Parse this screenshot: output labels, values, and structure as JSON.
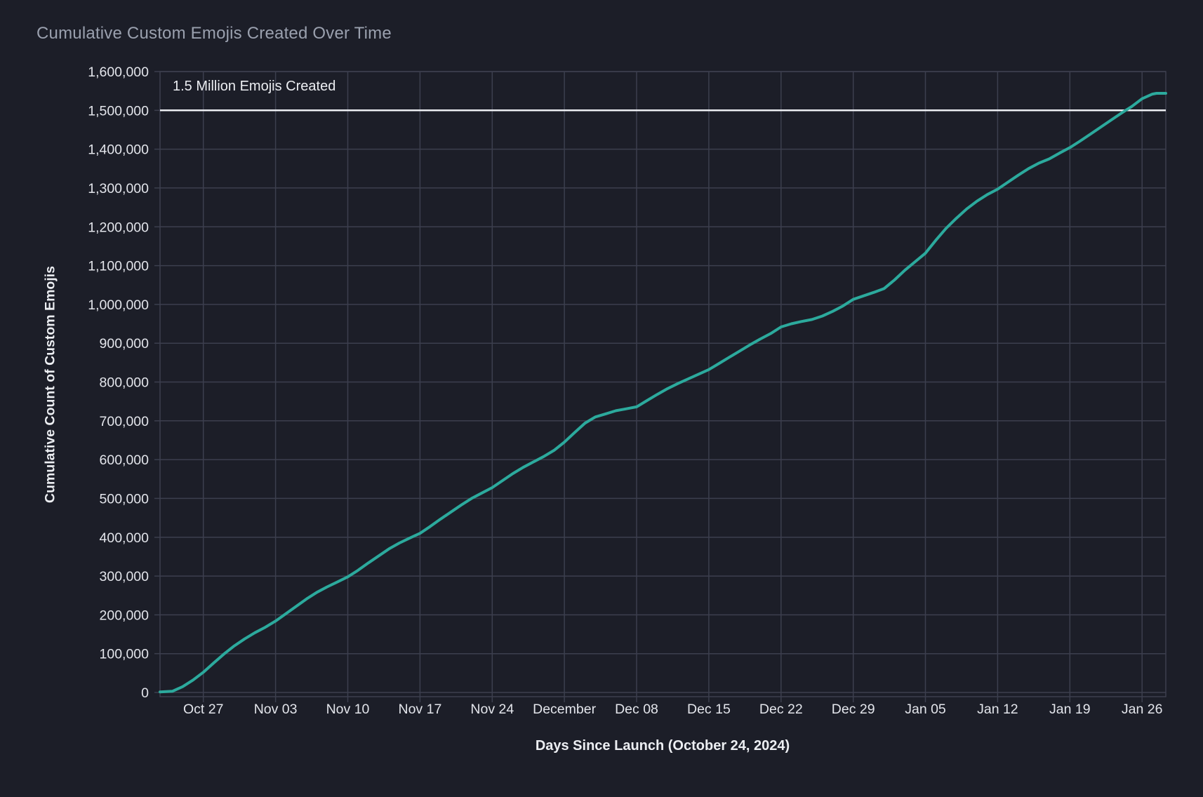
{
  "page": {
    "background": "#1c1e28"
  },
  "chart_data": {
    "type": "line",
    "title": "Cumulative Custom Emojis Created Over Time",
    "xlabel": "Days Since Launch (October 24, 2024)",
    "ylabel": "Cumulative Count of Custom Emojis",
    "annotation": "1.5 Million Emojis Created",
    "grid": true,
    "legend": "none",
    "x_domain_days": [
      -1.2,
      96.3
    ],
    "ylim": [
      0,
      1600000
    ],
    "colors": {
      "background": "#1c1e28",
      "grid": "#3c3f4e",
      "line": "#2caa9d",
      "reference": "#eceef2",
      "tick_text": "#e3e5eb",
      "axis_title_text": "#eceef2",
      "title_text": "#9aa0ae"
    },
    "reference_line": {
      "value": 1500000,
      "label": "1.5 Million Emojis Created"
    },
    "y_ticks": [
      0,
      100000,
      200000,
      300000,
      400000,
      500000,
      600000,
      700000,
      800000,
      900000,
      1000000,
      1100000,
      1200000,
      1300000,
      1400000,
      1500000,
      1600000
    ],
    "x_ticks": [
      {
        "day": 3,
        "label": "Oct 27"
      },
      {
        "day": 10,
        "label": "Nov 03"
      },
      {
        "day": 17,
        "label": "Nov 10"
      },
      {
        "day": 24,
        "label": "Nov 17"
      },
      {
        "day": 31,
        "label": "Nov 24"
      },
      {
        "day": 38,
        "label": "December"
      },
      {
        "day": 45,
        "label": "Dec 08"
      },
      {
        "day": 52,
        "label": "Dec 15"
      },
      {
        "day": 59,
        "label": "Dec 22"
      },
      {
        "day": 66,
        "label": "Dec 29"
      },
      {
        "day": 73,
        "label": "Jan 05"
      },
      {
        "day": 80,
        "label": "Jan 12"
      },
      {
        "day": 87,
        "label": "Jan 19"
      },
      {
        "day": 94,
        "label": "Jan 26"
      }
    ],
    "series": [
      {
        "name": "Cumulative Custom Emojis",
        "color": "#2caa9d",
        "points": [
          [
            -1.2,
            1500
          ],
          [
            0,
            3000
          ],
          [
            1,
            15000
          ],
          [
            2,
            32000
          ],
          [
            3,
            52000
          ],
          [
            4,
            76000
          ],
          [
            5,
            99000
          ],
          [
            6,
            120000
          ],
          [
            7,
            138000
          ],
          [
            8,
            154000
          ],
          [
            9,
            168000
          ],
          [
            10,
            184000
          ],
          [
            11,
            203000
          ],
          [
            12,
            222000
          ],
          [
            13,
            241000
          ],
          [
            14,
            258000
          ],
          [
            15,
            272000
          ],
          [
            16,
            285000
          ],
          [
            17,
            298000
          ],
          [
            18,
            315000
          ],
          [
            19,
            334000
          ],
          [
            20,
            352000
          ],
          [
            21,
            370000
          ],
          [
            22,
            385000
          ],
          [
            23,
            398000
          ],
          [
            24,
            410000
          ],
          [
            25,
            428000
          ],
          [
            26,
            447000
          ],
          [
            27,
            465000
          ],
          [
            28,
            483000
          ],
          [
            29,
            500000
          ],
          [
            30,
            514000
          ],
          [
            31,
            528000
          ],
          [
            32,
            546000
          ],
          [
            33,
            564000
          ],
          [
            34,
            580000
          ],
          [
            35,
            594000
          ],
          [
            36,
            608000
          ],
          [
            37,
            624000
          ],
          [
            38,
            645000
          ],
          [
            39,
            670000
          ],
          [
            40,
            694000
          ],
          [
            41,
            710000
          ],
          [
            42,
            718000
          ],
          [
            43,
            726000
          ],
          [
            44,
            731000
          ],
          [
            45,
            736000
          ],
          [
            46,
            752000
          ],
          [
            47,
            768000
          ],
          [
            48,
            783000
          ],
          [
            49,
            796000
          ],
          [
            50,
            808000
          ],
          [
            51,
            820000
          ],
          [
            52,
            832000
          ],
          [
            53,
            848000
          ],
          [
            54,
            864000
          ],
          [
            55,
            880000
          ],
          [
            56,
            896000
          ],
          [
            57,
            911000
          ],
          [
            58,
            925000
          ],
          [
            59,
            942000
          ],
          [
            60,
            950000
          ],
          [
            61,
            956000
          ],
          [
            62,
            961000
          ],
          [
            63,
            970000
          ],
          [
            64,
            982000
          ],
          [
            65,
            996000
          ],
          [
            66,
            1013000
          ],
          [
            67,
            1022000
          ],
          [
            68,
            1031000
          ],
          [
            69,
            1041000
          ],
          [
            70,
            1063000
          ],
          [
            71,
            1088000
          ],
          [
            72,
            1110000
          ],
          [
            73,
            1132000
          ],
          [
            74,
            1165000
          ],
          [
            75,
            1196000
          ],
          [
            76,
            1222000
          ],
          [
            77,
            1246000
          ],
          [
            78,
            1266000
          ],
          [
            79,
            1283000
          ],
          [
            80,
            1297000
          ],
          [
            81,
            1315000
          ],
          [
            82,
            1333000
          ],
          [
            83,
            1350000
          ],
          [
            84,
            1364000
          ],
          [
            85,
            1375000
          ],
          [
            86,
            1390000
          ],
          [
            87,
            1404000
          ],
          [
            88,
            1421000
          ],
          [
            89,
            1439000
          ],
          [
            90,
            1457000
          ],
          [
            91,
            1475000
          ],
          [
            92,
            1493000
          ],
          [
            93,
            1510000
          ],
          [
            94,
            1530000
          ],
          [
            95,
            1542000
          ],
          [
            95.4,
            1544000
          ],
          [
            96.3,
            1544000
          ]
        ]
      }
    ]
  }
}
